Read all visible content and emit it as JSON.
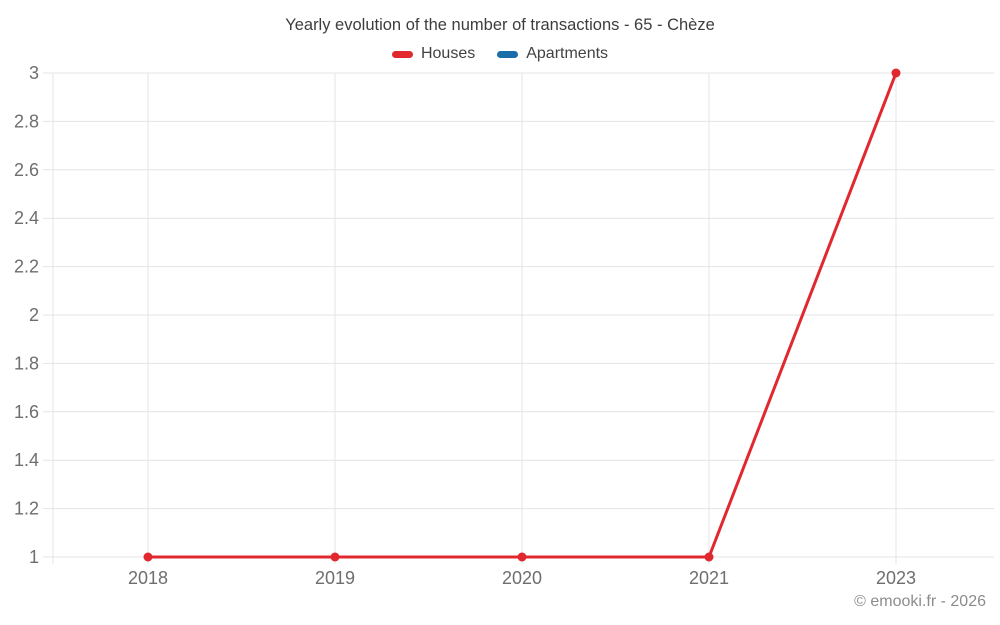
{
  "chart": {
    "title": "Yearly evolution of the number of transactions - 65 - Chèze",
    "footer": "© emooki.fr - 2026"
  },
  "chart_data": {
    "type": "line",
    "title": "Yearly evolution of the number of transactions - 65 - Chèze",
    "categories": [
      "2018",
      "2019",
      "2020",
      "2021",
      "2023"
    ],
    "series": [
      {
        "name": "Houses",
        "color": "#e0282e",
        "values": [
          1,
          1,
          1,
          1,
          3
        ]
      },
      {
        "name": "Apartments",
        "color": "#1a6da8",
        "values": []
      }
    ],
    "xlabel": "",
    "ylabel": "",
    "ylim": [
      1,
      3
    ],
    "yticks": [
      1,
      1.2,
      1.4,
      1.6,
      1.8,
      2,
      2.2,
      2.4,
      2.6,
      2.8,
      3
    ],
    "grid": true,
    "legend_position": "top",
    "annotations": [
      "© emooki.fr - 2026"
    ]
  }
}
